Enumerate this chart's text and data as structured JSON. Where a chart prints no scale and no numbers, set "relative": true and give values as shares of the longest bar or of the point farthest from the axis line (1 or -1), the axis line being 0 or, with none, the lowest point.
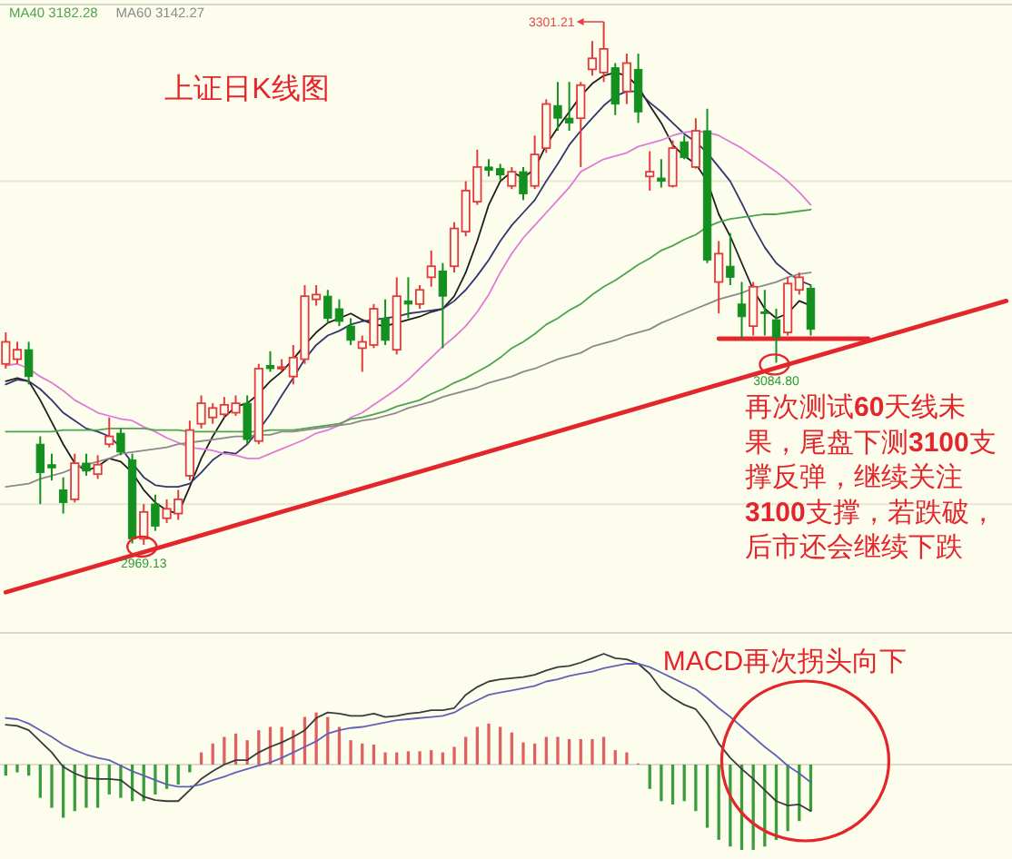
{
  "chart_data": [
    {
      "type": "candlestick",
      "title": "上证日K线图",
      "legend": "top left",
      "grid": "y",
      "yticks": [
        {
          "value": 3200,
          "label": null
        },
        {
          "value": 2995,
          "label": null
        }
      ],
      "categories": [
        null,
        null,
        null,
        null,
        null,
        null,
        null,
        null,
        null,
        null,
        null,
        null,
        null,
        null,
        null,
        null,
        null,
        null,
        null,
        null,
        null,
        null,
        null,
        null,
        null,
        null,
        null,
        null,
        null,
        null,
        null,
        null,
        null,
        null,
        null,
        null,
        null,
        null,
        null,
        null,
        null,
        null,
        null,
        null,
        null,
        null,
        null,
        null,
        null,
        null,
        null,
        null,
        null,
        null,
        null,
        null,
        null,
        null,
        null,
        null,
        null,
        null,
        null,
        null,
        null,
        null,
        null,
        null,
        null,
        null,
        null,
        null,
        null,
        null,
        null,
        null,
        null,
        null,
        null,
        null,
        null,
        null,
        null,
        null,
        null,
        null,
        null,
        null
      ],
      "ohlc": [
        [
          3084,
          3104,
          3081,
          3098
        ],
        [
          3087,
          3098,
          3084,
          3093
        ],
        [
          3093,
          3098,
          3071,
          3076
        ],
        [
          3033,
          3038,
          2995,
          3015
        ],
        [
          3020,
          3027,
          3010,
          3018
        ],
        [
          3004,
          3012,
          2989,
          2996
        ],
        [
          2998,
          3027,
          2996,
          3021
        ],
        [
          3021,
          3027,
          3013,
          3016
        ],
        [
          3014,
          3026,
          3011,
          3020
        ],
        [
          3033,
          3050,
          3031,
          3038
        ],
        [
          3040,
          3043,
          3026,
          3028
        ],
        [
          3023,
          3027,
          2970,
          2973
        ],
        [
          2973,
          2995,
          2969.13,
          2990
        ],
        [
          2995,
          3001,
          2978,
          2981
        ],
        [
          2986,
          2998,
          2983,
          2992
        ],
        [
          2989,
          3004,
          2985,
          2998
        ],
        [
          3013,
          3048,
          3010,
          3042
        ],
        [
          3046,
          3064,
          3043,
          3059
        ],
        [
          3050,
          3059,
          3046,
          3056
        ],
        [
          3052,
          3063,
          3050,
          3058
        ],
        [
          3053,
          3064,
          3051,
          3059
        ],
        [
          3059,
          3064,
          3033,
          3036
        ],
        [
          3035,
          3084,
          3033,
          3081
        ],
        [
          3083,
          3092,
          3079,
          3081
        ],
        [
          3081,
          3087,
          3079,
          3082
        ],
        [
          3076,
          3096,
          3071,
          3088
        ],
        [
          3087,
          3134,
          3084,
          3127
        ],
        [
          3125,
          3134,
          3121,
          3128
        ],
        [
          3127,
          3131,
          3110,
          3113
        ],
        [
          3119,
          3125,
          3108,
          3111
        ],
        [
          3108,
          3113,
          3096,
          3099
        ],
        [
          3094,
          3102,
          3079,
          3098
        ],
        [
          3096,
          3122,
          3094,
          3119
        ],
        [
          3113,
          3125,
          3096,
          3099
        ],
        [
          3093,
          3139,
          3090,
          3127
        ],
        [
          3124,
          3139,
          3113,
          3122
        ],
        [
          3122,
          3134,
          3119,
          3131
        ],
        [
          3139,
          3156,
          3133,
          3146
        ],
        [
          3143,
          3148,
          3094,
          3127
        ],
        [
          3146,
          3174,
          3142,
          3170
        ],
        [
          3168,
          3200,
          3165,
          3194
        ],
        [
          3187,
          3220,
          3185,
          3209
        ],
        [
          3209,
          3214,
          3203,
          3207
        ],
        [
          3208,
          3211,
          3201,
          3204
        ],
        [
          3197,
          3209,
          3195,
          3206
        ],
        [
          3206,
          3209,
          3188,
          3192
        ],
        [
          3197,
          3229,
          3195,
          3217
        ],
        [
          3221,
          3252,
          3218,
          3249
        ],
        [
          3248,
          3263,
          3232,
          3240
        ],
        [
          3240,
          3263,
          3232,
          3237
        ],
        [
          3240,
          3263,
          3209,
          3261
        ],
        [
          3271,
          3289,
          3267,
          3278
        ],
        [
          3269,
          3301.21,
          3263,
          3284
        ],
        [
          3272,
          3275,
          3242,
          3249
        ],
        [
          3257,
          3281,
          3249,
          3275
        ],
        [
          3271,
          3281,
          3237,
          3244
        ],
        [
          3203,
          3219,
          3194,
          3206
        ],
        [
          3202,
          3214,
          3196,
          3200
        ],
        [
          3197,
          3226,
          3196,
          3221
        ],
        [
          3225,
          3229,
          3214,
          3215
        ],
        [
          3209,
          3240,
          3208,
          3232
        ],
        [
          3232,
          3246,
          3148,
          3150
        ],
        [
          3136,
          3162,
          3116,
          3154
        ],
        [
          3146,
          3167,
          3134,
          3139
        ],
        [
          3122,
          3136,
          3100,
          3114
        ],
        [
          3108,
          3136,
          3102,
          3133
        ],
        [
          3117,
          3131,
          3102,
          3116
        ],
        [
          3112,
          3119,
          3084.8,
          3101
        ],
        [
          3104,
          3139,
          3102,
          3135
        ],
        [
          3131,
          3142,
          3128,
          3139
        ],
        [
          3132,
          3134,
          3102,
          3106
        ],
        null,
        null,
        null,
        null,
        null,
        null,
        null,
        null,
        null,
        null,
        null,
        null,
        null,
        null,
        null,
        null,
        null
      ],
      "colors": [
        "#e23b3b",
        "#e23b3b",
        "#13901f",
        "#13901f",
        "#13901f",
        "#13901f",
        "#e23b3b",
        "#13901f",
        "#e23b3b",
        "#e23b3b",
        "#13901f",
        "#13901f",
        "#e23b3b",
        "#13901f",
        "#e23b3b",
        "#e23b3b",
        "#e23b3b",
        "#e23b3b",
        "#e23b3b",
        "#e23b3b",
        "#e23b3b",
        "#13901f",
        "#e23b3b",
        "#13901f",
        "#e23b3b",
        "#e23b3b",
        "#e23b3b",
        "#e23b3b",
        "#13901f",
        "#13901f",
        "#13901f",
        "#e23b3b",
        "#e23b3b",
        "#13901f",
        "#e23b3b",
        "#13901f",
        "#e23b3b",
        "#e23b3b",
        "#13901f",
        "#e23b3b",
        "#e23b3b",
        "#e23b3b",
        "#13901f",
        "#13901f",
        "#e23b3b",
        "#13901f",
        "#e23b3b",
        "#e23b3b",
        "#13901f",
        "#13901f",
        "#e23b3b",
        "#e23b3b",
        "#e23b3b",
        "#13901f",
        "#e23b3b",
        "#13901f",
        "#e23b3b",
        "#13901f",
        "#e23b3b",
        "#13901f",
        "#e23b3b",
        "#13901f",
        "#e23b3b",
        "#13901f",
        "#13901f",
        "#e23b3b",
        "#13901f",
        "#13901f",
        "#e23b3b",
        "#e23b3b",
        "#13901f",
        null,
        null,
        null,
        null,
        null,
        null,
        null,
        null,
        null,
        null,
        null,
        null,
        null,
        null,
        null,
        null,
        null
      ],
      "series": [
        {
          "type": "line",
          "color": "#1e1e1e",
          "values": [
            3073,
            3075,
            3073,
            3061,
            3047,
            3033,
            3021,
            3016,
            3019,
            3024,
            3022,
            3015,
            3004,
            2996,
            2991,
            2989,
            3006,
            3024,
            3038,
            3050,
            3057,
            3059,
            3065,
            3073,
            3079,
            3087,
            3096,
            3104,
            3110,
            3113,
            3116,
            3112,
            3109,
            3108,
            3110,
            3112,
            3114,
            3117,
            3119,
            3127,
            3142,
            3162,
            3185,
            3200,
            3206,
            3202,
            3208,
            3223,
            3234,
            3244,
            3254,
            3262,
            3267,
            3269,
            3267,
            3260,
            3248,
            3237,
            3223,
            3216,
            3211,
            3200,
            3179,
            3165,
            3148,
            3131,
            3119,
            3113,
            3116,
            3124,
            3121,
            null,
            null,
            null,
            null,
            null,
            null,
            null,
            null,
            null,
            null,
            null,
            null,
            null,
            null,
            null,
            null,
            null
          ]
        },
        {
          "type": "line",
          "color": "#34346e",
          "values": [
            3071,
            3074,
            3073,
            3068,
            3061,
            3053,
            3048,
            3043,
            3041,
            3038,
            3031,
            3021,
            3012,
            3007,
            3006,
            3006,
            3008,
            3015,
            3023,
            3028,
            3027,
            3033,
            3042,
            3052,
            3064,
            3075,
            3087,
            3096,
            3102,
            3105,
            3109,
            3111,
            3112,
            3113,
            3114,
            3116,
            3117,
            3118,
            3119,
            3124,
            3131,
            3140,
            3150,
            3162,
            3172,
            3180,
            3188,
            3200,
            3211,
            3223,
            3232,
            3240,
            3248,
            3254,
            3257,
            3257,
            3250,
            3244,
            3237,
            3230,
            3225,
            3218,
            3209,
            3200,
            3186,
            3171,
            3158,
            3148,
            3142,
            3137,
            3134,
            null,
            null,
            null,
            null,
            null,
            null,
            null,
            null,
            null,
            null,
            null,
            null,
            null,
            null,
            null,
            null,
            null
          ]
        },
        {
          "type": "line",
          "color": "#e07ad8",
          "values": [
            3083,
            3084,
            3081,
            3076,
            3072,
            3067,
            3061,
            3057,
            3053,
            3051,
            3049,
            3048,
            3044,
            3041,
            3037,
            3034,
            3031,
            3030,
            3029,
            3027,
            3026,
            3024,
            3024,
            3027,
            3030,
            3033,
            3036,
            3040,
            3042,
            3045,
            3050,
            3053,
            3058,
            3063,
            3068,
            3074,
            3081,
            3088,
            3095,
            3101,
            3108,
            3117,
            3128,
            3142,
            3154,
            3164,
            3172,
            3180,
            3188,
            3196,
            3206,
            3210,
            3214,
            3216,
            3218,
            3222,
            3224,
            3226,
            3229,
            3231,
            3232,
            3231,
            3229,
            3225,
            3221,
            3216,
            3211,
            3206,
            3200,
            3193,
            3185,
            null,
            null,
            null,
            null,
            null,
            null,
            null,
            null,
            null,
            null,
            null,
            null,
            null,
            null,
            null,
            null,
            null
          ]
        },
        {
          "type": "line",
          "name": "MA40 3182.28",
          "color": "#4ea34e",
          "values": [
            3041,
            3041,
            3041,
            3041,
            3041,
            3042,
            3042,
            3042,
            3042,
            3043,
            3043,
            3043,
            3043,
            3042,
            3042,
            3042,
            3041,
            3041,
            3041,
            3041,
            3041,
            3041,
            3041,
            3042,
            3042,
            3042,
            3043,
            3044,
            3045,
            3046,
            3049,
            3050,
            3052,
            3054,
            3057,
            3059,
            3061,
            3065,
            3068,
            3072,
            3075,
            3079,
            3083,
            3088,
            3094,
            3098,
            3103,
            3109,
            3113,
            3118,
            3122,
            3128,
            3133,
            3137,
            3142,
            3147,
            3151,
            3156,
            3159,
            3163,
            3166,
            3171,
            3174,
            3176,
            3177,
            3178,
            3179,
            3179,
            3180,
            3181,
            3182,
            null,
            null,
            null,
            null,
            null,
            null,
            null,
            null,
            null,
            null,
            null,
            null,
            null,
            null,
            null,
            null,
            null
          ]
        },
        {
          "type": "line",
          "name": "MA60 3142.27",
          "color": "#8a8a8a",
          "values": [
            3006,
            3007,
            3008,
            3011,
            3013,
            3015,
            3018,
            3020,
            3022,
            3024,
            3027,
            3028,
            3029,
            3030,
            3031,
            3033,
            3034,
            3035,
            3036,
            3037,
            3038,
            3038,
            3039,
            3039,
            3041,
            3041,
            3042,
            3043,
            3044,
            3045,
            3046,
            3048,
            3049,
            3051,
            3053,
            3056,
            3058,
            3060,
            3063,
            3065,
            3067,
            3069,
            3072,
            3074,
            3076,
            3079,
            3081,
            3084,
            3087,
            3089,
            3091,
            3095,
            3097,
            3099,
            3102,
            3104,
            3106,
            3110,
            3113,
            3116,
            3119,
            3122,
            3125,
            3127,
            3129,
            3132,
            3134,
            3136,
            3139,
            3141,
            3142,
            null,
            null,
            null,
            null,
            null,
            null,
            null,
            null,
            null,
            null,
            null,
            null,
            null,
            null,
            null,
            null,
            null
          ]
        },
        {
          "type": "line",
          "color": "#e3262b",
          "values": [
            2939,
            null,
            null,
            null,
            null,
            null,
            null,
            null,
            null,
            null,
            null,
            null,
            null,
            null,
            null,
            null,
            null,
            null,
            null,
            null,
            null,
            null,
            null,
            null,
            null,
            null,
            null,
            null,
            null,
            null,
            null,
            null,
            null,
            null,
            null,
            null,
            null,
            null,
            null,
            null,
            null,
            null,
            null,
            null,
            null,
            null,
            null,
            null,
            null,
            null,
            null,
            null,
            null,
            null,
            null,
            null,
            null,
            null,
            null,
            null,
            null,
            null,
            null,
            null,
            null,
            null,
            null,
            null,
            null,
            null,
            null,
            null,
            null,
            null,
            null,
            null,
            null,
            null,
            null,
            null,
            null,
            null,
            null,
            null,
            null,
            null,
            null,
            3124
          ]
        },
        {
          "type": "line",
          "color": "#e3262b",
          "values": [
            null,
            null,
            null,
            null,
            null,
            null,
            null,
            null,
            null,
            null,
            null,
            null,
            null,
            null,
            null,
            null,
            null,
            null,
            null,
            null,
            null,
            null,
            null,
            null,
            null,
            null,
            null,
            null,
            null,
            null,
            null,
            null,
            null,
            null,
            null,
            null,
            null,
            null,
            null,
            null,
            null,
            null,
            null,
            null,
            null,
            null,
            null,
            null,
            null,
            null,
            null,
            null,
            null,
            null,
            null,
            null,
            null,
            null,
            null,
            null,
            null,
            null,
            3100,
            null,
            null,
            null,
            null,
            null,
            null,
            null,
            null,
            null,
            null,
            null,
            null,
            3100,
            null,
            null,
            null,
            null,
            null,
            null,
            null,
            null,
            null,
            null,
            null,
            null
          ]
        }
      ],
      "annotations": [
        "3301.21",
        {
          "text": "2969.13",
          "y": 2969.13
        },
        {
          "text": "3084.80",
          "y": 3084.8
        },
        "再次测试**60**天线未果，尾盘下测**3100**支撑反弹，继续关注**3100**支撑，若跌破，后市还会继续下跌"
      ]
    },
    {
      "type": "bar",
      "relative": true,
      "categories": [
        null,
        null,
        null,
        null,
        null,
        null,
        null,
        null,
        null,
        null,
        null,
        null,
        null,
        null,
        null,
        null,
        null,
        null,
        null,
        null,
        null,
        null,
        null,
        null,
        null,
        null,
        null,
        null,
        null,
        null,
        null,
        null,
        null,
        null,
        null,
        null,
        null,
        null,
        null,
        null,
        null,
        null,
        null,
        null,
        null,
        null,
        null,
        null,
        null,
        null,
        null,
        null,
        null,
        null,
        null,
        null,
        null,
        null,
        null,
        null,
        null,
        null,
        null,
        null,
        null,
        null,
        null,
        null,
        null,
        null,
        null,
        null,
        null,
        null,
        null,
        null,
        null,
        null,
        null,
        null,
        null,
        null,
        null,
        null,
        null,
        null,
        null,
        null
      ],
      "series": [
        {
          "values": [
            -0.1,
            -0.07,
            -0.1,
            -0.3,
            -0.39,
            -0.48,
            -0.42,
            -0.39,
            -0.39,
            -0.27,
            -0.3,
            -0.33,
            -0.33,
            -0.27,
            -0.22,
            -0.18,
            -0.07,
            0.11,
            0.19,
            0.25,
            0.28,
            0.22,
            0.31,
            0.34,
            0.34,
            0.31,
            0.43,
            0.47,
            0.43,
            0.34,
            0.22,
            0.19,
            0.18,
            0.11,
            0.11,
            0.12,
            0.12,
            0.13,
            0.11,
            0.16,
            0.25,
            0.34,
            0.37,
            0.34,
            0.29,
            0.2,
            0.19,
            0.25,
            0.25,
            0.23,
            0.23,
            0.23,
            0.25,
            0.13,
            0.11,
            0.01,
            -0.22,
            -0.33,
            -0.36,
            -0.33,
            -0.42,
            -0.57,
            -0.68,
            -0.74,
            -0.77,
            -0.77,
            -0.74,
            -0.68,
            -0.6,
            -0.51,
            -0.42,
            null,
            null,
            null,
            null,
            null,
            null,
            null,
            null,
            null,
            null,
            null,
            null,
            null,
            null,
            null,
            null,
            null
          ],
          "colors": [
            "#3c9c3c",
            "#3c9c3c",
            "#3c9c3c",
            "#3c9c3c",
            "#3c9c3c",
            "#3c9c3c",
            "#3c9c3c",
            "#3c9c3c",
            "#3c9c3c",
            "#3c9c3c",
            "#3c9c3c",
            "#3c9c3c",
            "#3c9c3c",
            "#3c9c3c",
            "#3c9c3c",
            "#3c9c3c",
            "#3c9c3c",
            "#e06060",
            "#e06060",
            "#e06060",
            "#e06060",
            "#e06060",
            "#e06060",
            "#e06060",
            "#e06060",
            "#e06060",
            "#e06060",
            "#e06060",
            "#e06060",
            "#e06060",
            "#e06060",
            "#e06060",
            "#e06060",
            "#e06060",
            "#e06060",
            "#e06060",
            "#e06060",
            "#e06060",
            "#e06060",
            "#e06060",
            "#e06060",
            "#e06060",
            "#e06060",
            "#e06060",
            "#e06060",
            "#e06060",
            "#e06060",
            "#e06060",
            "#e06060",
            "#e06060",
            "#e06060",
            "#e06060",
            "#e06060",
            "#e06060",
            "#e06060",
            "#e06060",
            "#3c9c3c",
            "#3c9c3c",
            "#3c9c3c",
            "#3c9c3c",
            "#3c9c3c",
            "#3c9c3c",
            "#3c9c3c",
            "#3c9c3c",
            "#3c9c3c",
            "#3c9c3c",
            "#3c9c3c",
            "#3c9c3c",
            "#3c9c3c",
            "#3c9c3c",
            "#3c9c3c",
            null,
            null,
            null,
            null,
            null,
            null,
            null,
            null,
            null,
            null,
            null,
            null,
            null,
            null,
            null,
            null,
            null
          ]
        },
        {
          "type": "line",
          "color": "#3a3a3a",
          "values": [
            0.36,
            0.35,
            0.31,
            0.21,
            0.11,
            -0.02,
            -0.08,
            -0.12,
            -0.13,
            -0.13,
            -0.14,
            -0.22,
            -0.29,
            -0.32,
            -0.33,
            -0.33,
            -0.23,
            -0.13,
            -0.06,
            0,
            0.04,
            0.04,
            0.11,
            0.16,
            0.2,
            0.25,
            0.31,
            0.42,
            0.47,
            0.46,
            0.44,
            0.44,
            0.46,
            0.43,
            0.44,
            0.46,
            0.47,
            0.49,
            0.49,
            0.51,
            0.63,
            0.7,
            0.75,
            0.77,
            0.78,
            0.79,
            0.81,
            0.85,
            0.88,
            0.89,
            0.92,
            0.96,
            1,
            0.96,
            0.95,
            0.91,
            0.82,
            0.68,
            0.6,
            0.54,
            0.5,
            0.37,
            0.19,
            0.06,
            -0.04,
            -0.13,
            -0.23,
            -0.33,
            -0.37,
            -0.36,
            -0.42,
            null,
            null,
            null,
            null,
            null,
            null,
            null,
            null,
            null,
            null,
            null,
            null,
            null,
            null,
            null,
            null,
            null
          ]
        },
        {
          "type": "line",
          "color": "#6262b4",
          "values": [
            0.42,
            0.41,
            0.37,
            0.31,
            0.25,
            0.18,
            0.13,
            0.09,
            0.06,
            0.04,
            -0.01,
            -0.06,
            -0.1,
            -0.14,
            -0.18,
            -0.2,
            -0.2,
            -0.18,
            -0.14,
            -0.11,
            -0.07,
            -0.04,
            -0.01,
            0.02,
            0.06,
            0.11,
            0.16,
            0.21,
            0.28,
            0.31,
            0.33,
            0.34,
            0.36,
            0.38,
            0.4,
            0.41,
            0.42,
            0.43,
            0.44,
            0.47,
            0.53,
            0.58,
            0.63,
            0.65,
            0.67,
            0.69,
            0.71,
            0.75,
            0.77,
            0.8,
            0.82,
            0.84,
            0.87,
            0.89,
            0.91,
            0.91,
            0.88,
            0.83,
            0.78,
            0.73,
            0.68,
            0.6,
            0.51,
            0.43,
            0.34,
            0.25,
            0.16,
            0.08,
            -0.01,
            -0.08,
            -0.16,
            null,
            null,
            null,
            null,
            null,
            null,
            null,
            null,
            null,
            null,
            null,
            null,
            null,
            null,
            null,
            null,
            null
          ]
        }
      ],
      "annotations": [
        "MACD再次拐头向下"
      ]
    }
  ]
}
